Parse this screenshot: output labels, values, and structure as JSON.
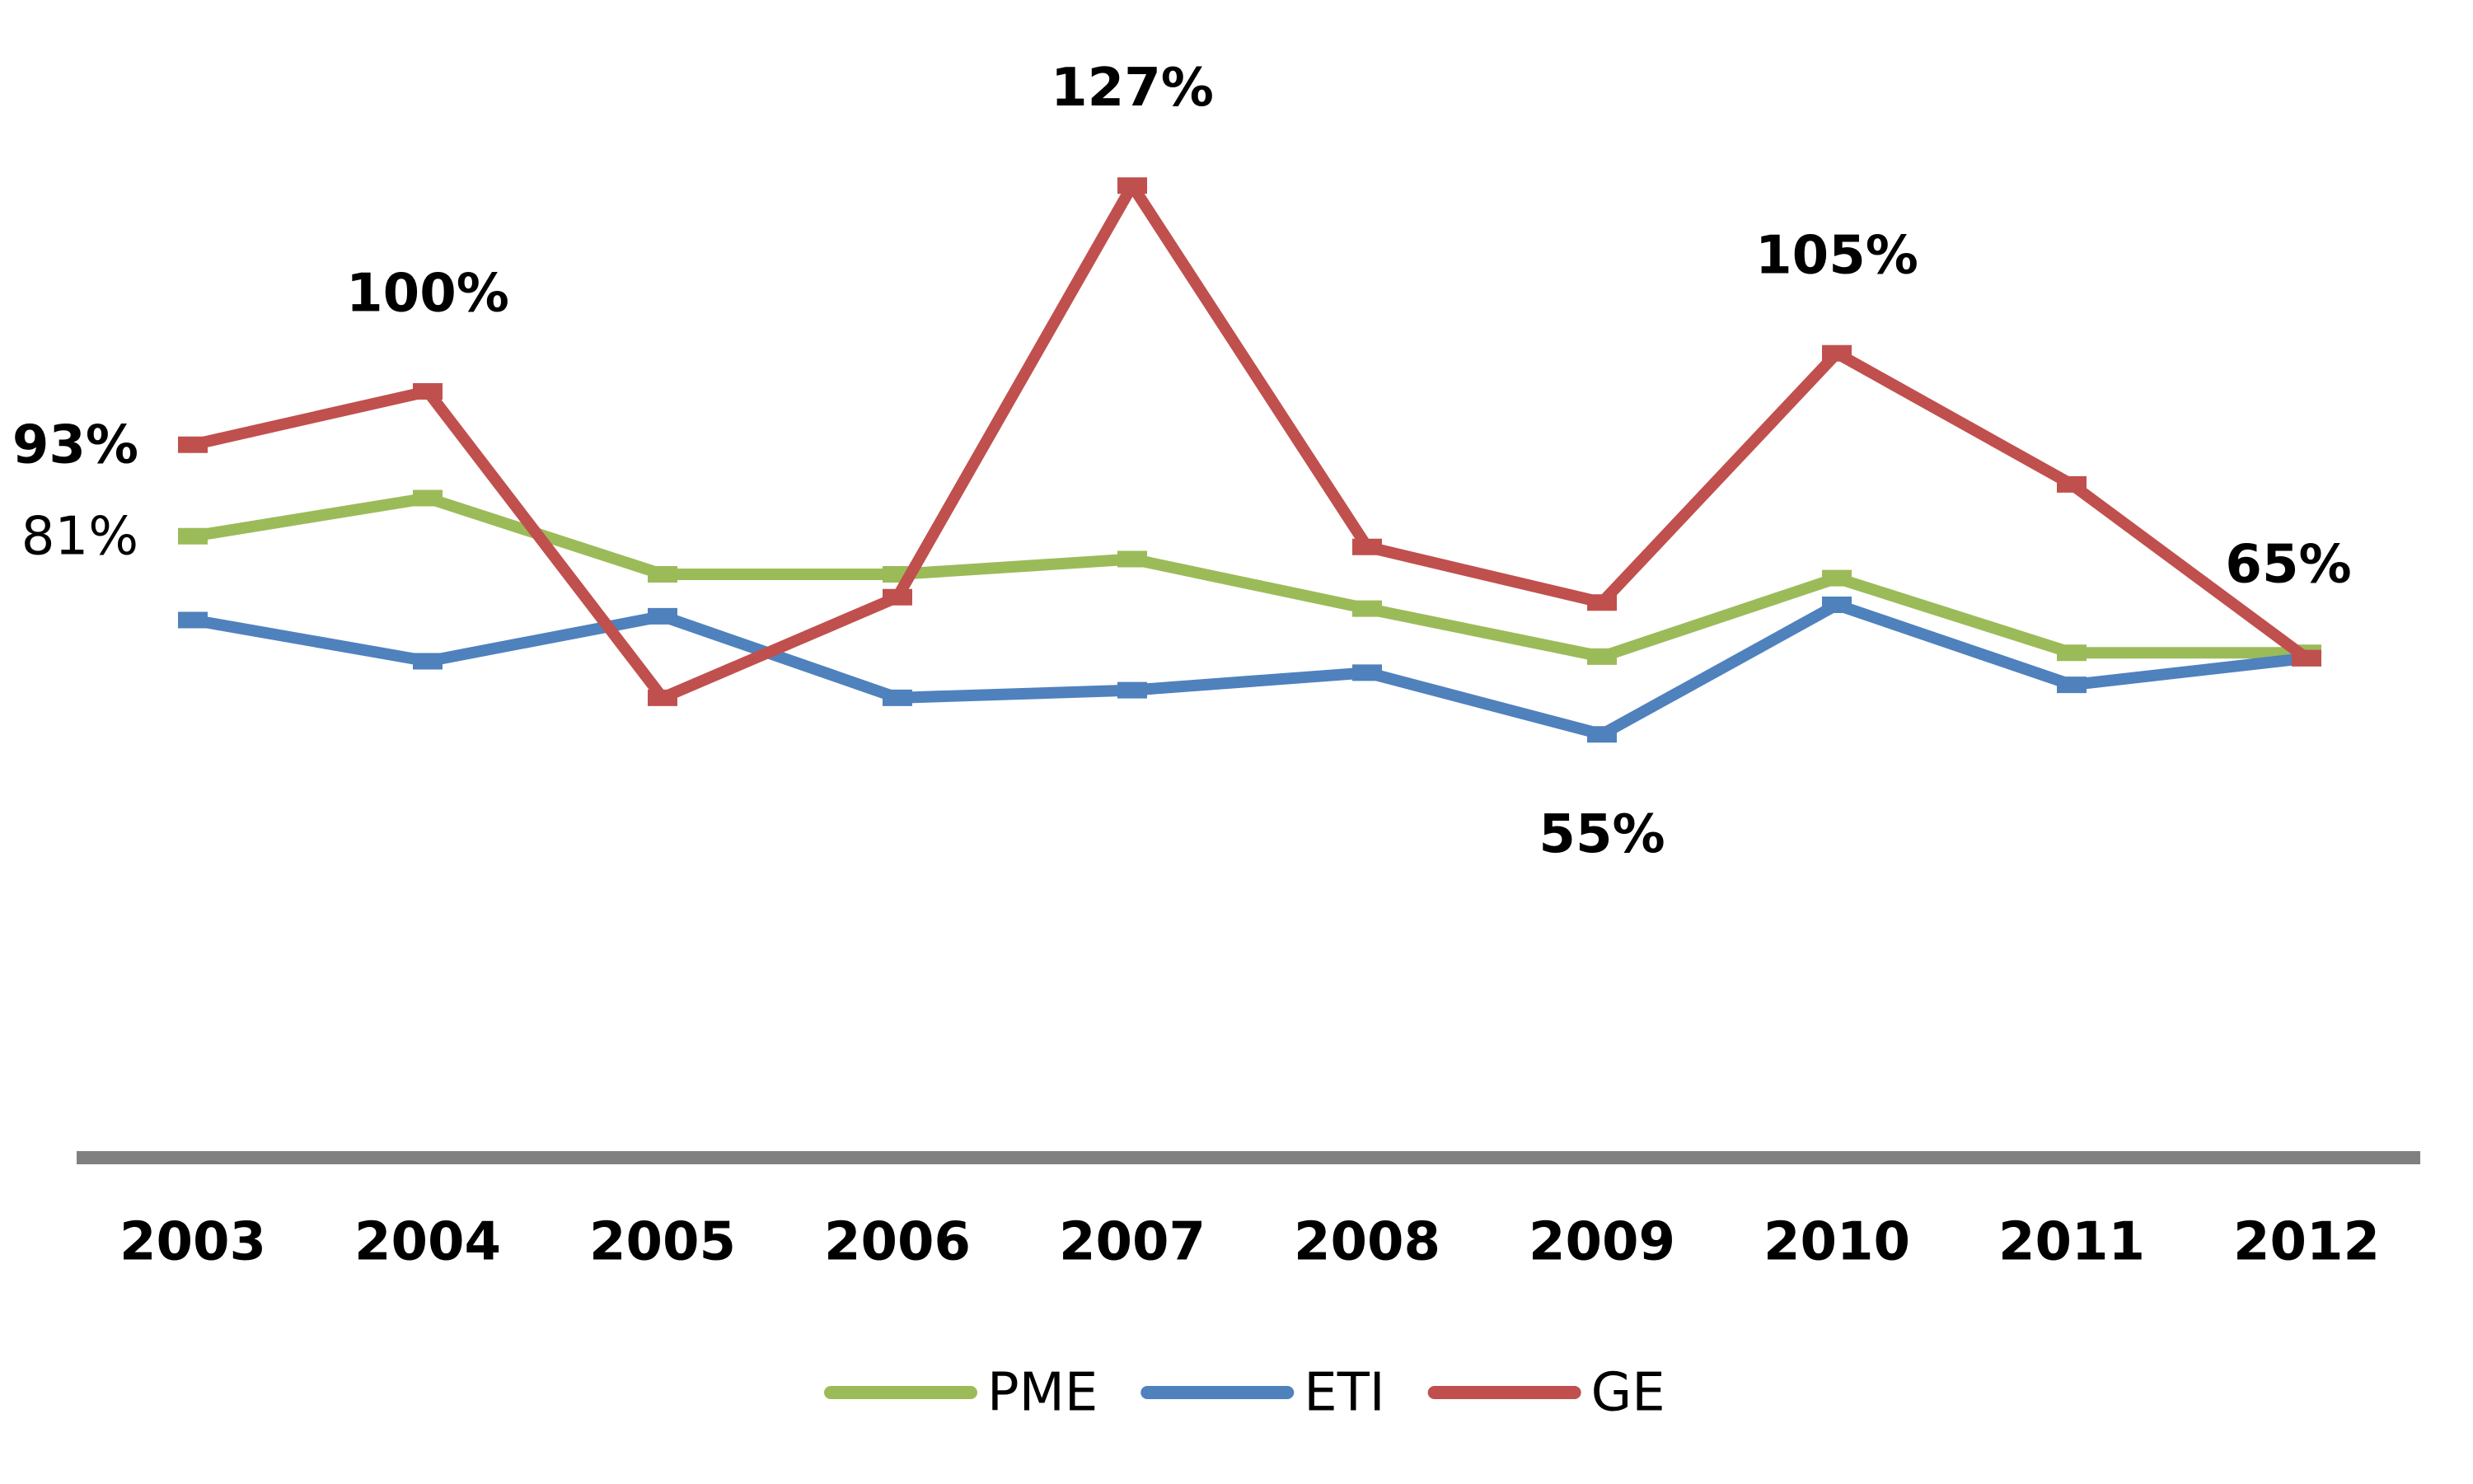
{
  "chart_data": {
    "type": "line",
    "categories": [
      "2003",
      "2004",
      "2005",
      "2006",
      "2007",
      "2008",
      "2009",
      "2010",
      "2011",
      "2012"
    ],
    "ylim": [
      0,
      140
    ],
    "legend": "bottom",
    "series": [
      {
        "name": "PME",
        "color": "#9bbb59",
        "values": [
          81,
          86,
          76,
          76,
          78,
          71.5,
          65.2,
          75.5,
          65.7,
          65.7
        ],
        "value_labels": [
          "81%",
          null,
          null,
          null,
          null,
          null,
          null,
          null,
          null,
          null
        ]
      },
      {
        "name": "ETI",
        "color": "#4f81bd",
        "values": [
          70,
          64.6,
          70.5,
          59.8,
          60.8,
          63.1,
          55,
          72,
          61.5,
          65
        ],
        "value_labels": [
          null,
          null,
          null,
          null,
          null,
          null,
          "55%",
          null,
          null,
          null
        ]
      },
      {
        "name": "GE",
        "color": "#c0504d",
        "values": [
          93,
          100,
          59.8,
          73,
          127,
          79.6,
          72.3,
          105,
          87.8,
          65
        ],
        "value_labels": [
          "93%",
          "100%",
          null,
          null,
          "127%",
          null,
          null,
          "105%",
          null,
          "65%"
        ]
      }
    ]
  }
}
